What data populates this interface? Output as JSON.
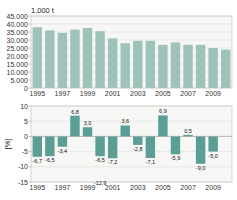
{
  "chart_data": [
    {
      "type": "bar",
      "y_label": "1.000 t",
      "categories": [
        "1995",
        null,
        "1997",
        null,
        "1999",
        null,
        "2001",
        null,
        "2003",
        null,
        "2005",
        null,
        "2007",
        null,
        "2009",
        null
      ],
      "values": [
        38000,
        36000,
        34500,
        36500,
        37500,
        35500,
        31000,
        28000,
        29500,
        29500,
        27000,
        28500,
        27000,
        27000,
        25000,
        24000
      ],
      "color": "#9dc3bb",
      "ylim": [
        0,
        45000
      ],
      "yticks": [
        0,
        {
          "value": 5000,
          "label": "5.000"
        },
        {
          "value": 10000,
          "label": "10.000"
        },
        {
          "value": 15000,
          "label": "15.000"
        },
        {
          "value": 20000,
          "label": "20.000"
        },
        {
          "value": 25000,
          "label": "25.000"
        },
        {
          "value": 30000,
          "label": "30.000"
        },
        {
          "value": 35000,
          "label": "35.000"
        },
        {
          "value": 40000,
          "label": "40.000"
        },
        {
          "value": 45000,
          "label": "45.000"
        }
      ],
      "grid": true
    },
    {
      "type": "bar",
      "y_label": "[%]",
      "categories": [
        "1995",
        null,
        "1997",
        null,
        "1999",
        null,
        "2001",
        null,
        "2003",
        null,
        "2005",
        null,
        "2007",
        null,
        "2009",
        null
      ],
      "values": [
        -6.7,
        -6.5,
        -3.4,
        6.8,
        3.0,
        -6.5,
        -7.2,
        3.6,
        -2.8,
        -7.1,
        6.9,
        -5.9,
        0.5,
        -9.0,
        -5.0,
        0.0
      ],
      "value_labels": [
        "-6,7",
        "-6,5",
        "-3,4",
        "6,8",
        "3,0",
        "-6,5",
        "-7,2",
        "3,6",
        "-2,8",
        "-7,1",
        "6,9",
        "-5,9",
        "0,5",
        "-9,0",
        "-5,0",
        null
      ],
      "data_labels": true,
      "color": "#5a9e96",
      "ylim": [
        -15,
        10
      ],
      "yticks": [
        -15,
        -10,
        -5,
        0,
        5,
        10
      ],
      "grid": true,
      "annotations": [
        {
          "text": "-12,9",
          "index": 5,
          "y": -14.2
        }
      ]
    }
  ]
}
